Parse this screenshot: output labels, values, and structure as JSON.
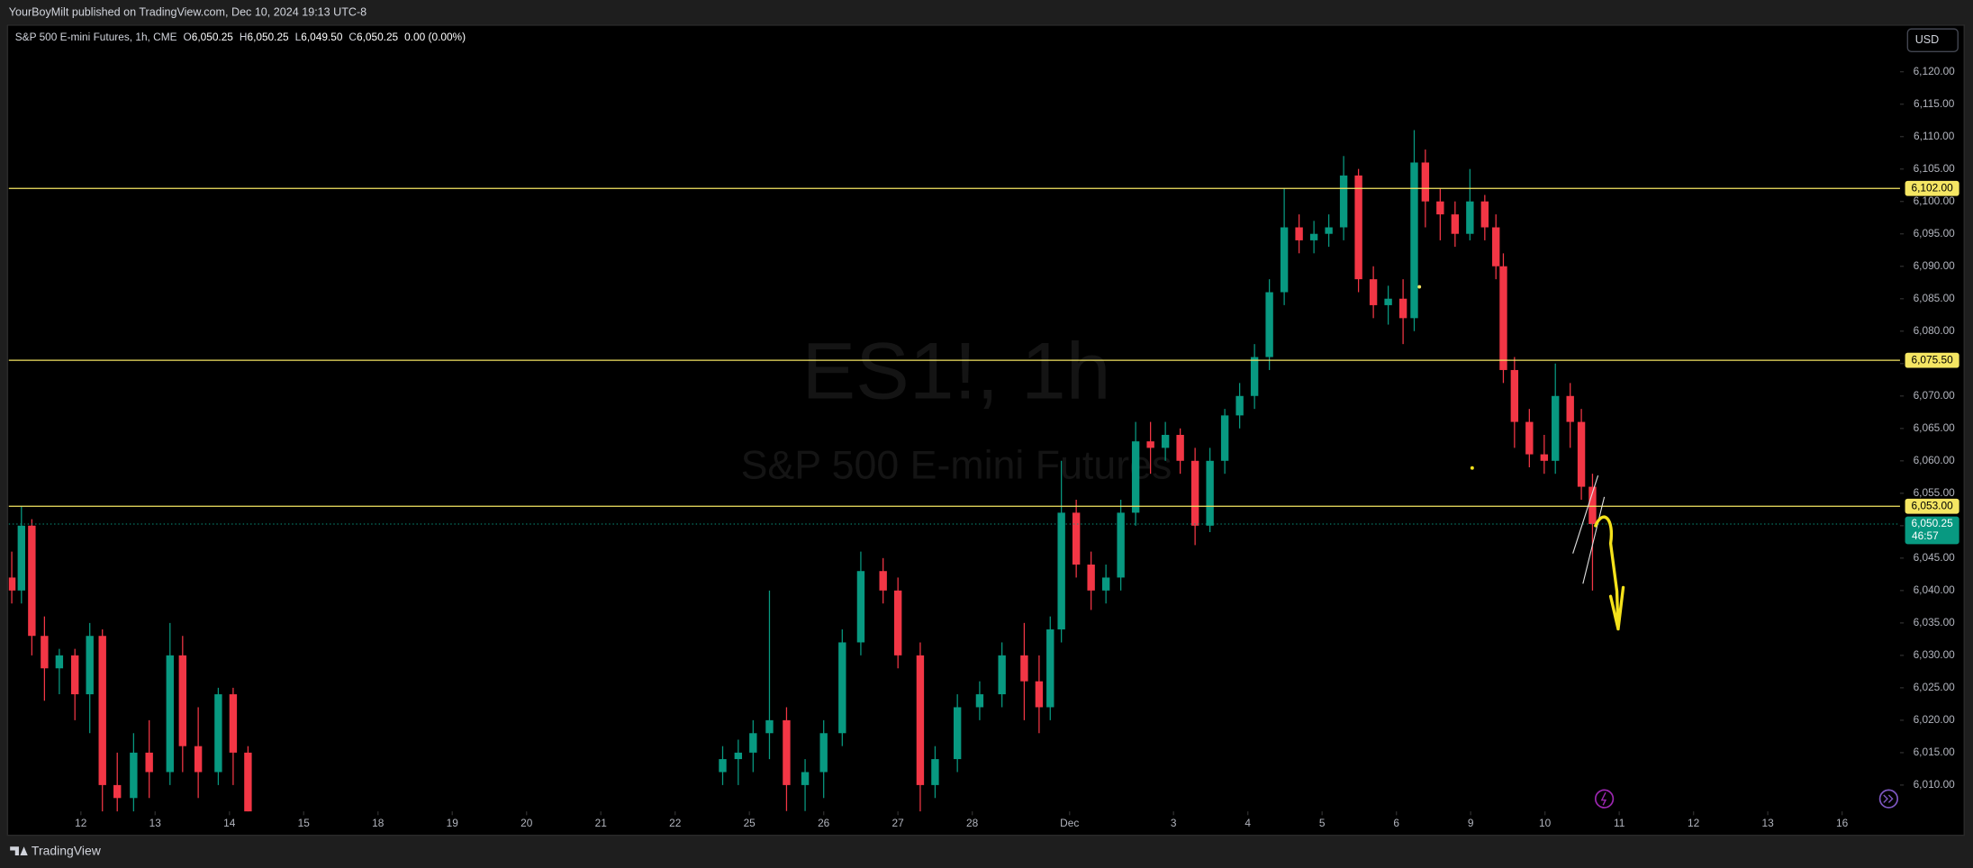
{
  "header": {
    "text": "YourBoyMilt published on TradingView.com, Dec 10, 2024 19:13 UTC-8"
  },
  "footer": {
    "brand": "TradingView"
  },
  "chart_data": {
    "type": "candlestick",
    "title": "S&P 500 E-mini Futures, 1h, CME",
    "legend_values": [
      {
        "key": "O",
        "text": "6,050.25"
      },
      {
        "key": "H",
        "text": "6,050.25"
      },
      {
        "key": "L",
        "text": "6,049.50"
      },
      {
        "key": "C",
        "text": "6,050.25"
      }
    ],
    "change": "0.00 (0.00%)",
    "watermark": {
      "symbol": "ES1!, 1h",
      "description": "S&P 500 E-mini Futures"
    },
    "currency": "USD",
    "up_color": "#089981",
    "down_color": "#f23645",
    "xlim": [
      -0.97,
      24.49
    ],
    "xticks": [
      {
        "value": 0,
        "label": "12"
      },
      {
        "value": 1,
        "label": "13"
      },
      {
        "value": 2,
        "label": "14"
      },
      {
        "value": 3,
        "label": "15"
      },
      {
        "value": 4,
        "label": "18"
      },
      {
        "value": 5,
        "label": "19"
      },
      {
        "value": 6,
        "label": "20"
      },
      {
        "value": 7,
        "label": "21"
      },
      {
        "value": 8,
        "label": "22"
      },
      {
        "value": 9,
        "label": "25"
      },
      {
        "value": 10,
        "label": "26"
      },
      {
        "value": 11,
        "label": "27"
      },
      {
        "value": 12,
        "label": "28"
      },
      {
        "value": 13.31,
        "label": "Dec"
      },
      {
        "value": 14.71,
        "label": "3"
      },
      {
        "value": 15.71,
        "label": "4"
      },
      {
        "value": 16.71,
        "label": "5"
      },
      {
        "value": 17.71,
        "label": "6"
      },
      {
        "value": 18.71,
        "label": "9"
      },
      {
        "value": 19.71,
        "label": "10"
      },
      {
        "value": 20.71,
        "label": "11"
      },
      {
        "value": 21.71,
        "label": "12"
      },
      {
        "value": 22.71,
        "label": "13"
      },
      {
        "value": 23.71,
        "label": "16"
      }
    ],
    "ylim": [
      6005.94,
      6127.18
    ],
    "yticks": [
      {
        "value": 6010,
        "label": "6,010.00"
      },
      {
        "value": 6015,
        "label": "6,015.00"
      },
      {
        "value": 6020,
        "label": "6,020.00"
      },
      {
        "value": 6025,
        "label": "6,025.00"
      },
      {
        "value": 6030,
        "label": "6,030.00"
      },
      {
        "value": 6035,
        "label": "6,035.00"
      },
      {
        "value": 6040,
        "label": "6,040.00"
      },
      {
        "value": 6045,
        "label": "6,045.00"
      },
      {
        "value": 6050,
        "label": "6,050.00"
      },
      {
        "value": 6055,
        "label": "6,055.00"
      },
      {
        "value": 6060,
        "label": "6,060.00"
      },
      {
        "value": 6065,
        "label": "6,065.00"
      },
      {
        "value": 6070,
        "label": "6,070.00"
      },
      {
        "value": 6075,
        "label": "6,075.00"
      },
      {
        "value": 6080,
        "label": "6,080.00"
      },
      {
        "value": 6085,
        "label": "6,085.00"
      },
      {
        "value": 6090,
        "label": "6,090.00"
      },
      {
        "value": 6095,
        "label": "6,095.00"
      },
      {
        "value": 6100,
        "label": "6,100.00"
      },
      {
        "value": 6105,
        "label": "6,105.00"
      },
      {
        "value": 6110,
        "label": "6,110.00"
      },
      {
        "value": 6115,
        "label": "6,115.00"
      },
      {
        "value": 6120,
        "label": "6,120.00"
      }
    ],
    "levels": [
      {
        "value": 6102,
        "label": "6,102.00",
        "color": "#f5e663"
      },
      {
        "value": 6075.5,
        "label": "6,075.50",
        "color": "#f5e663"
      },
      {
        "value": 6053,
        "label": "6,053.00",
        "color": "#f5e663"
      }
    ],
    "last_price": {
      "value": 6050.25,
      "label": "6,050.25",
      "countdown": "46:57",
      "color": "#089981"
    },
    "x": [
      -0.93,
      -0.8,
      -0.66,
      -0.49,
      -0.29,
      -0.08,
      0.12,
      0.29,
      0.49,
      0.71,
      0.92,
      1.2,
      1.37,
      1.58,
      1.85,
      2.05,
      2.25,
      8.64,
      8.85,
      9.05,
      9.27,
      9.5,
      9.75,
      10.0,
      10.25,
      10.5,
      10.8,
      11.0,
      11.3,
      11.5,
      11.8,
      12.1,
      12.4,
      12.7,
      12.9,
      13.05,
      13.2,
      13.4,
      13.6,
      13.8,
      14.0,
      14.2,
      14.4,
      14.6,
      14.8,
      15.0,
      15.2,
      15.4,
      15.6,
      15.8,
      16.0,
      16.2,
      16.4,
      16.6,
      16.8,
      17.0,
      17.2,
      17.4,
      17.6,
      17.8,
      17.95,
      18.1,
      18.3,
      18.5,
      18.7,
      18.9,
      19.05,
      19.15,
      19.3,
      19.5,
      19.7,
      19.85,
      20.05,
      20.2,
      20.35
    ],
    "open": [
      6042,
      6040,
      6050,
      6033,
      6028,
      6030,
      6024,
      6033,
      6010,
      6008,
      6015,
      6012,
      6030,
      6016,
      6012,
      6024,
      6015,
      6012,
      6014,
      6015,
      6018,
      6020,
      6010,
      6012,
      6018,
      6032,
      6043,
      6040,
      6030,
      6010,
      6014,
      6022,
      6024,
      6030,
      6026,
      6022,
      6034,
      6052,
      6044,
      6040,
      6042,
      6052,
      6063,
      6062,
      6064,
      6060,
      6050,
      6060,
      6067,
      6070,
      6076,
      6086,
      6096,
      6094,
      6095,
      6096,
      6104,
      6088,
      6084,
      6085,
      6082,
      6106,
      6100,
      6098,
      6095,
      6100,
      6096,
      6090,
      6074,
      6066,
      6061,
      6060,
      6070,
      6066,
      6056
    ],
    "high": [
      6046,
      6053,
      6051,
      6036,
      6031,
      6031,
      6035,
      6034,
      6015,
      6018,
      6020,
      6035,
      6033,
      6022,
      6025,
      6025,
      6016,
      6016,
      6017,
      6020,
      6040,
      6022,
      6014,
      6020,
      6034,
      6046,
      6045,
      6042,
      6032,
      6016,
      6024,
      6026,
      6032,
      6035,
      6030,
      6036,
      6060,
      6054,
      6046,
      6044,
      6054,
      6066,
      6066,
      6066,
      6065,
      6062,
      6062,
      6068,
      6072,
      6078,
      6088,
      6102,
      6098,
      6097,
      6098,
      6107,
      6105,
      6090,
      6087,
      6088,
      6111,
      6108,
      6102,
      6100,
      6105,
      6101,
      6098,
      6092,
      6076,
      6068,
      6064,
      6075,
      6072,
      6068,
      6058
    ],
    "low": [
      6038,
      6038,
      6030,
      6023,
      6024,
      6020,
      6018,
      6005,
      6004,
      6004,
      6008,
      6010,
      6012,
      6008,
      6010,
      6010,
      6000,
      6010,
      6010,
      6012,
      6014,
      6006,
      6006,
      6008,
      6016,
      6030,
      6038,
      6028,
      6005,
      6008,
      6012,
      6020,
      6022,
      6020,
      6018,
      6020,
      6032,
      6042,
      6037,
      6038,
      6040,
      6050,
      6058,
      6060,
      6058,
      6047,
      6049,
      6058,
      6065,
      6068,
      6074,
      6084,
      6092,
      6092,
      6093,
      6094,
      6086,
      6082,
      6081,
      6078,
      6080,
      6096,
      6094,
      6093,
      6094,
      6094,
      6088,
      6072,
      6062,
      6059,
      6058,
      6058,
      6062,
      6054,
      6040
    ],
    "close": [
      6040,
      6050,
      6033,
      6028,
      6030,
      6024,
      6033,
      6010,
      6008,
      6015,
      6012,
      6030,
      6016,
      6012,
      6024,
      6015,
      6004,
      6014,
      6015,
      6018,
      6020,
      6010,
      6012,
      6018,
      6032,
      6043,
      6040,
      6030,
      6010,
      6014,
      6022,
      6024,
      6030,
      6026,
      6022,
      6034,
      6052,
      6044,
      6040,
      6042,
      6052,
      6063,
      6062,
      6064,
      6060,
      6050,
      6060,
      6067,
      6070,
      6076,
      6086,
      6096,
      6094,
      6095,
      6096,
      6104,
      6088,
      6084,
      6085,
      6082,
      6106,
      6100,
      6098,
      6095,
      6100,
      6096,
      6090,
      6074,
      6066,
      6061,
      6060,
      6070,
      6066,
      6056,
      6050.25
    ]
  }
}
